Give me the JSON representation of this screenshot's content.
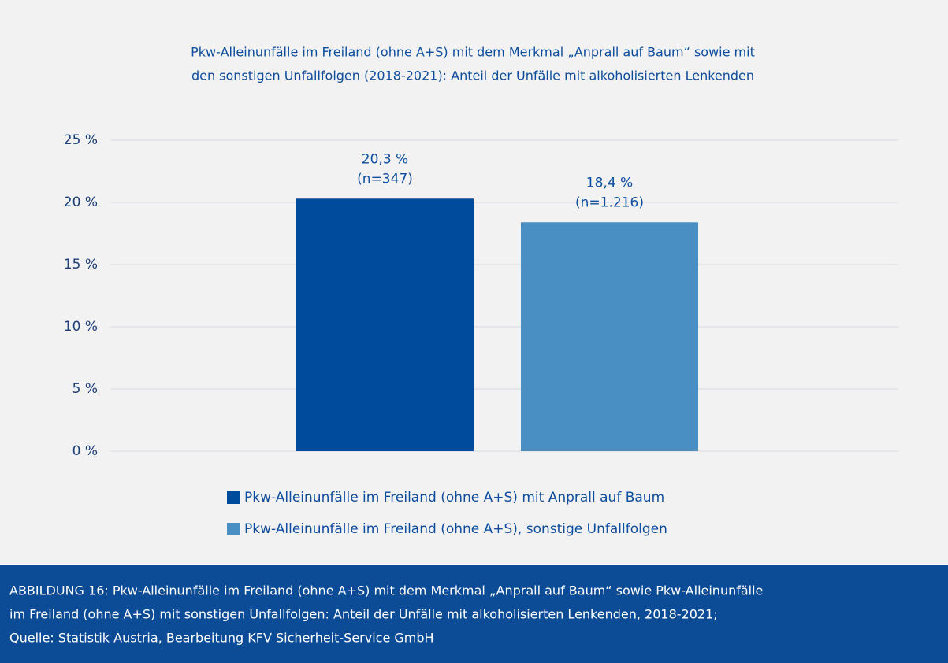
{
  "chart_data": {
    "type": "bar",
    "title": [
      "Pkw-Alleinunfälle im Freiland (ohne A+S) mit dem Merkmal „Anprall auf Baum“ sowie mit",
      "den sonstigen Unfallfolgen (2018-2021): Anteil der Unfälle mit alkoholisierten Lenkenden"
    ],
    "categories": [
      null
    ],
    "series": [
      {
        "name": "Pkw-Alleinunfälle im Freiland (ohne A+S) mit Anprall auf Baum",
        "color": "#004b9b",
        "values": [
          20.3
        ],
        "value_labels": [
          "20,3 %"
        ],
        "sample_labels": [
          "(n=347)"
        ]
      },
      {
        "name": "Pkw-Alleinunfälle im Freiland (ohne A+S), sonstige Unfallfolgen",
        "color": "#4a8fc4",
        "values": [
          18.4
        ],
        "value_labels": [
          "18,4 %"
        ],
        "sample_labels": [
          "(n=1.216)"
        ]
      }
    ],
    "ylim": [
      0,
      25
    ],
    "yticks": [
      {
        "value": 0,
        "label": "0 %"
      },
      {
        "value": 5,
        "label": "5 %"
      },
      {
        "value": 10,
        "label": "10 %"
      },
      {
        "value": 15,
        "label": "15 %"
      },
      {
        "value": 20,
        "label": "20 %"
      },
      {
        "value": 25,
        "label": "25 %"
      }
    ],
    "grid": true,
    "legend": "bottom"
  },
  "caption": [
    "ABBILDUNG 16: Pkw-Alleinunfälle im Freiland (ohne A+S) mit dem Merkmal „Anprall auf Baum“ sowie Pkw-Alleinunfälle",
    "im Freiland (ohne A+S) mit sonstigen Unfallfolgen: Anteil der Unfälle mit alkoholisierten Lenkenden, 2018-2021;",
    "Quelle: Statistik Austria, Bearbeitung KFV Sicherheit-Service GmbH"
  ]
}
